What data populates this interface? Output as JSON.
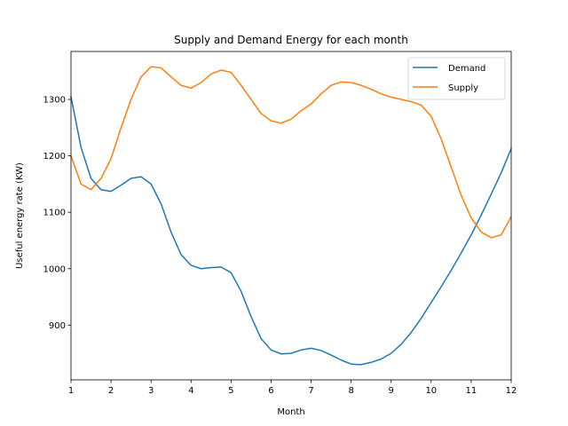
{
  "chart_data": {
    "type": "line",
    "title": "Supply and Demand Energy for each month",
    "xlabel": "Month",
    "ylabel": "Useful energy rate (KW)",
    "xlim": [
      1,
      12
    ],
    "ylim": [
      803,
      1385
    ],
    "x_ticks": [
      1,
      2,
      3,
      4,
      5,
      6,
      7,
      8,
      9,
      10,
      11,
      12
    ],
    "y_ticks": [
      900,
      1000,
      1100,
      1200,
      1300
    ],
    "grid": false,
    "legend_position": "top-right",
    "series": [
      {
        "name": "Demand",
        "color": "#1f77b4",
        "x": [
          1,
          1.25,
          1.5,
          1.75,
          2,
          2.25,
          2.5,
          2.75,
          3,
          3.25,
          3.5,
          3.75,
          4,
          4.25,
          4.5,
          4.75,
          5,
          5.25,
          5.5,
          5.75,
          6,
          6.25,
          6.5,
          6.75,
          7,
          7.25,
          7.5,
          7.75,
          8,
          8.25,
          8.5,
          8.75,
          9,
          9.25,
          9.5,
          9.75,
          10,
          10.25,
          10.5,
          10.75,
          11,
          11.25,
          11.5,
          11.75,
          12
        ],
        "values": [
          1305,
          1215,
          1160,
          1140,
          1137,
          1148,
          1160,
          1163,
          1150,
          1115,
          1065,
          1025,
          1006,
          1000,
          1002,
          1003,
          993,
          960,
          915,
          876,
          856,
          849,
          850,
          856,
          859,
          855,
          847,
          838,
          831,
          830,
          834,
          840,
          850,
          866,
          887,
          912,
          940,
          968,
          997,
          1028,
          1060,
          1095,
          1132,
          1170,
          1213
        ]
      },
      {
        "name": "Supply",
        "color": "#ff7f0e",
        "x": [
          1,
          1.25,
          1.5,
          1.75,
          2,
          2.25,
          2.5,
          2.75,
          3,
          3.25,
          3.5,
          3.75,
          4,
          4.25,
          4.5,
          4.75,
          5,
          5.25,
          5.5,
          5.75,
          6,
          6.25,
          6.5,
          6.75,
          7,
          7.25,
          7.5,
          7.75,
          8,
          8.25,
          8.5,
          8.75,
          9,
          9.25,
          9.5,
          9.75,
          10,
          10.25,
          10.5,
          10.75,
          11,
          11.25,
          11.5,
          11.75,
          12
        ],
        "values": [
          1200,
          1150,
          1140,
          1160,
          1195,
          1250,
          1300,
          1340,
          1358,
          1356,
          1340,
          1325,
          1320,
          1330,
          1345,
          1352,
          1348,
          1325,
          1300,
          1275,
          1262,
          1258,
          1265,
          1280,
          1292,
          1310,
          1325,
          1331,
          1330,
          1325,
          1318,
          1310,
          1304,
          1300,
          1296,
          1290,
          1270,
          1230,
          1180,
          1130,
          1090,
          1065,
          1055,
          1060,
          1092
        ]
      }
    ]
  }
}
